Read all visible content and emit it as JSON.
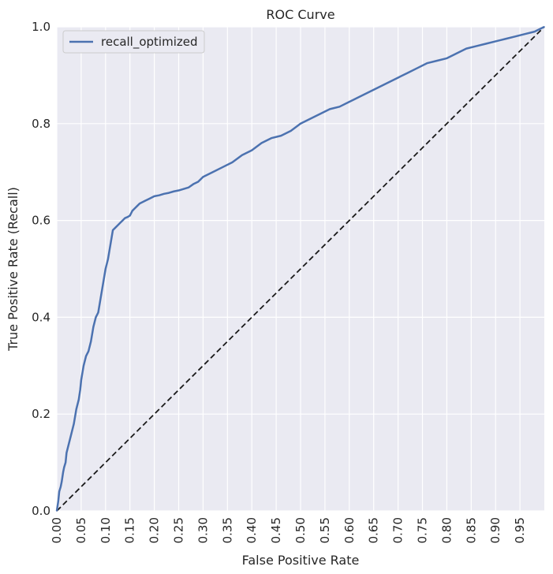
{
  "chart_data": {
    "type": "line",
    "title": "ROC Curve",
    "xlabel": "False Positive Rate",
    "ylabel": "True Positive Rate (Recall)",
    "xlim": [
      0,
      1
    ],
    "ylim": [
      0,
      1
    ],
    "x_ticks": [
      "0.00",
      "0.05",
      "0.10",
      "0.15",
      "0.20",
      "0.25",
      "0.30",
      "0.35",
      "0.40",
      "0.45",
      "0.50",
      "0.55",
      "0.60",
      "0.65",
      "0.70",
      "0.75",
      "0.80",
      "0.85",
      "0.90",
      "0.95"
    ],
    "y_ticks": [
      "0.0",
      "0.2",
      "0.4",
      "0.6",
      "0.8",
      "1.0"
    ],
    "grid": true,
    "legend_position": "top-left",
    "background_color": "#EAEAF2",
    "series": [
      {
        "name": "recall_optimized",
        "color": "#4C72B0",
        "x": [
          0.0,
          0.003,
          0.005,
          0.008,
          0.01,
          0.013,
          0.015,
          0.018,
          0.02,
          0.025,
          0.03,
          0.035,
          0.04,
          0.045,
          0.048,
          0.05,
          0.055,
          0.06,
          0.065,
          0.07,
          0.075,
          0.08,
          0.085,
          0.09,
          0.095,
          0.1,
          0.105,
          0.11,
          0.115,
          0.12,
          0.125,
          0.13,
          0.135,
          0.14,
          0.145,
          0.15,
          0.155,
          0.16,
          0.165,
          0.17,
          0.18,
          0.19,
          0.2,
          0.21,
          0.22,
          0.23,
          0.24,
          0.25,
          0.26,
          0.27,
          0.28,
          0.29,
          0.3,
          0.32,
          0.34,
          0.36,
          0.38,
          0.4,
          0.42,
          0.44,
          0.46,
          0.48,
          0.5,
          0.52,
          0.54,
          0.56,
          0.58,
          0.6,
          0.62,
          0.64,
          0.66,
          0.68,
          0.7,
          0.72,
          0.74,
          0.76,
          0.78,
          0.8,
          0.82,
          0.84,
          0.86,
          0.88,
          0.9,
          0.92,
          0.94,
          0.96,
          0.98,
          1.0
        ],
        "y": [
          0.0,
          0.02,
          0.04,
          0.05,
          0.06,
          0.08,
          0.09,
          0.1,
          0.12,
          0.14,
          0.16,
          0.18,
          0.21,
          0.23,
          0.25,
          0.27,
          0.3,
          0.32,
          0.33,
          0.35,
          0.38,
          0.4,
          0.41,
          0.44,
          0.47,
          0.5,
          0.52,
          0.55,
          0.58,
          0.585,
          0.59,
          0.595,
          0.6,
          0.605,
          0.607,
          0.61,
          0.62,
          0.625,
          0.63,
          0.635,
          0.64,
          0.645,
          0.65,
          0.652,
          0.655,
          0.657,
          0.66,
          0.662,
          0.665,
          0.668,
          0.675,
          0.68,
          0.69,
          0.7,
          0.71,
          0.72,
          0.735,
          0.745,
          0.76,
          0.77,
          0.775,
          0.785,
          0.8,
          0.81,
          0.82,
          0.83,
          0.835,
          0.845,
          0.855,
          0.865,
          0.875,
          0.885,
          0.895,
          0.905,
          0.915,
          0.925,
          0.93,
          0.935,
          0.945,
          0.955,
          0.96,
          0.965,
          0.97,
          0.975,
          0.98,
          0.985,
          0.99,
          1.0
        ]
      }
    ],
    "reference_line": {
      "style": "dashed",
      "color": "#1a1a1a",
      "x": [
        0,
        1
      ],
      "y": [
        0,
        1
      ]
    }
  }
}
